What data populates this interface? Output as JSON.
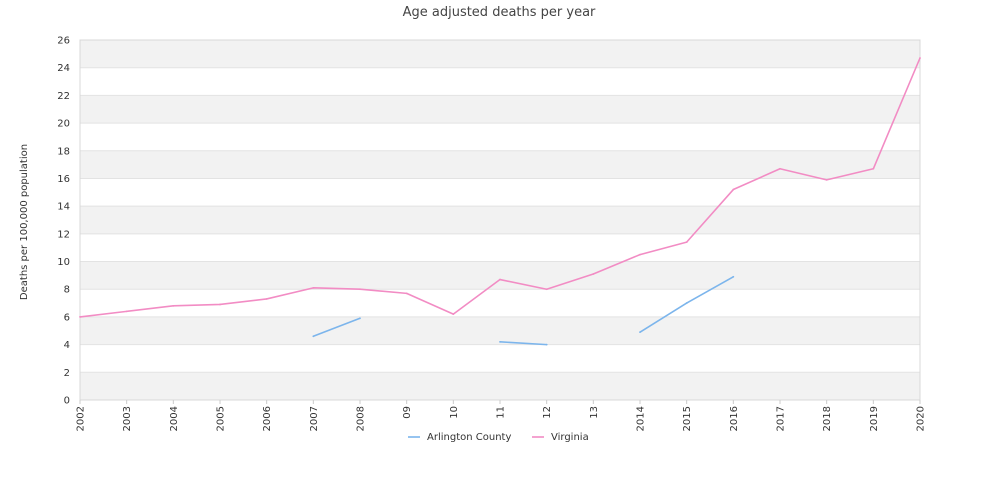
{
  "chart_data": {
    "type": "line",
    "title": "Age adjusted deaths per year",
    "xlabel": "",
    "ylabel": "Deaths per 100,000 population",
    "categories": [
      "2002",
      "2003",
      "2004",
      "2005",
      "2006",
      "2007",
      "2008",
      "09",
      "10",
      "11",
      "12",
      "13",
      "2014",
      "2015",
      "2016",
      "2017",
      "2018",
      "2019",
      "2020"
    ],
    "ylim": [
      0,
      26
    ],
    "yticks": [
      0,
      2,
      4,
      6,
      8,
      10,
      12,
      14,
      16,
      18,
      20,
      22,
      24,
      26
    ],
    "grid": true,
    "legend_position": "bottom",
    "series": [
      {
        "name": "Arlington County",
        "color": "#7cb5ec",
        "values": [
          null,
          null,
          null,
          null,
          null,
          4.6,
          5.9,
          null,
          null,
          4.2,
          4.0,
          null,
          4.9,
          7.0,
          8.9,
          null,
          null,
          null,
          null
        ]
      },
      {
        "name": "Virginia",
        "color": "#f28cc4",
        "values": [
          6.0,
          6.4,
          6.8,
          6.9,
          7.3,
          8.1,
          8.0,
          7.7,
          6.2,
          8.7,
          8.0,
          9.1,
          10.5,
          11.4,
          15.2,
          16.7,
          15.9,
          16.7,
          24.7
        ]
      }
    ]
  }
}
